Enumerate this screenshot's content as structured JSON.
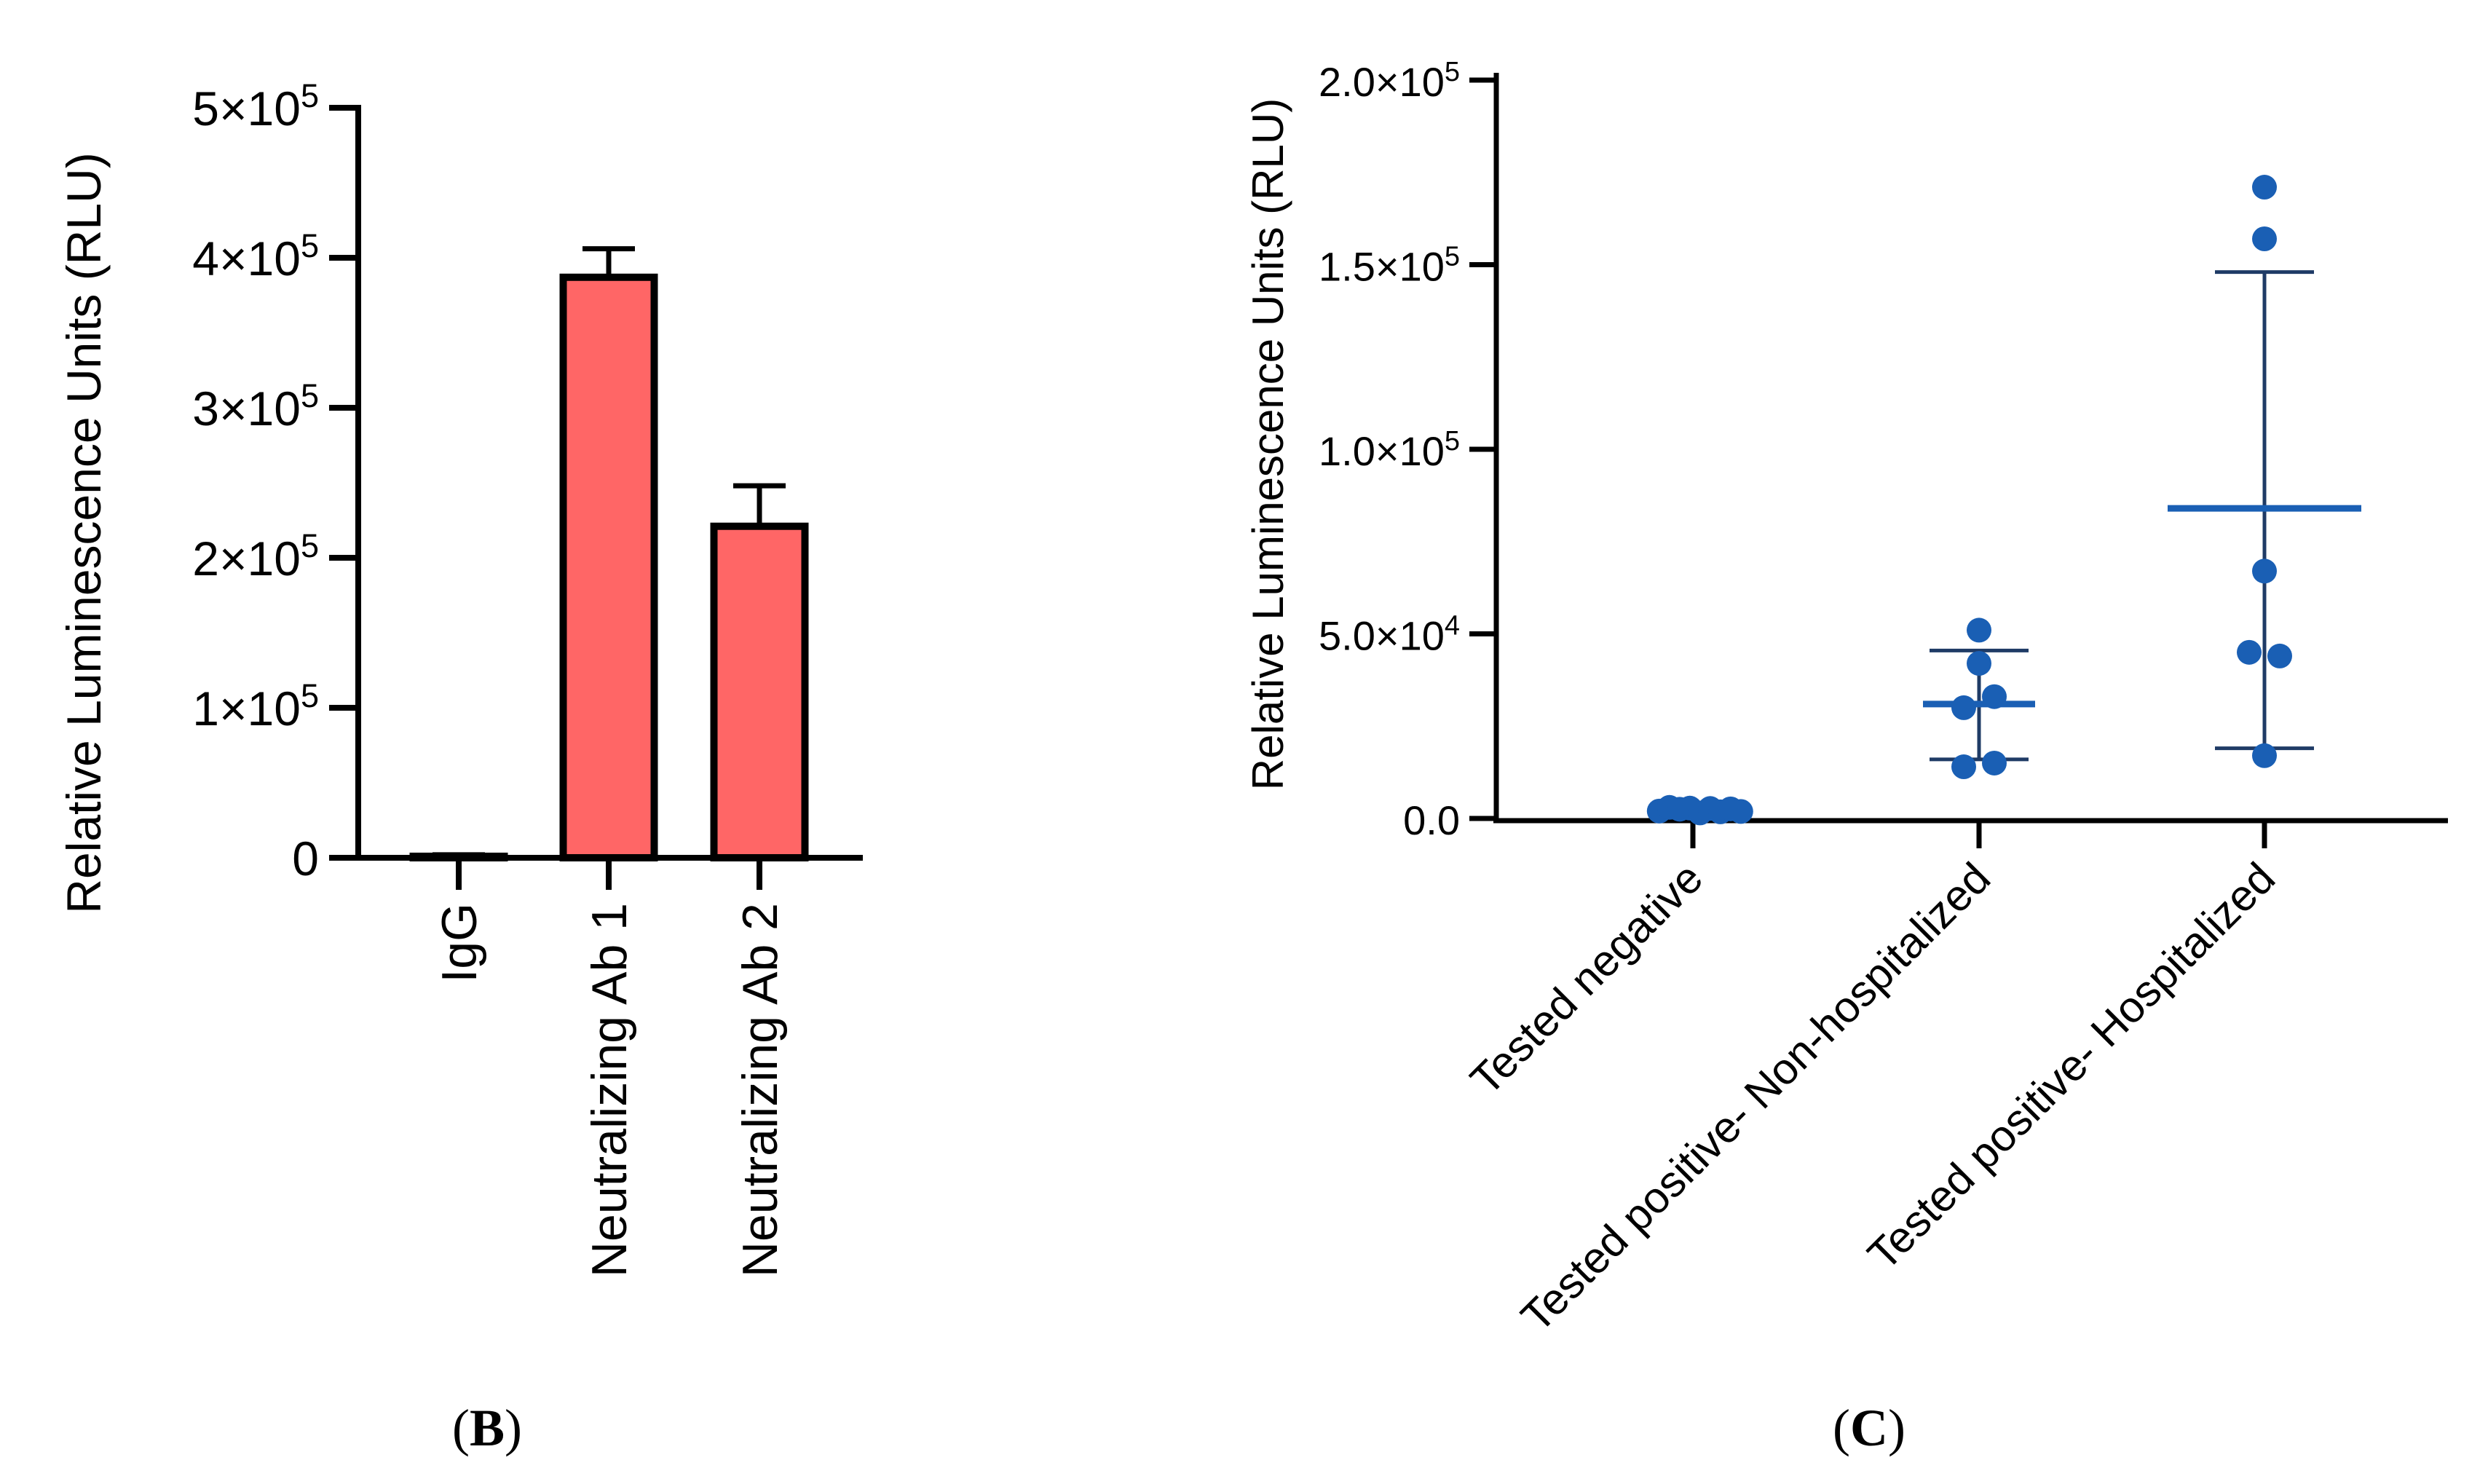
{
  "panels": {
    "B": {
      "label_prefix": "(",
      "label_letter": "B",
      "label_suffix": ")"
    },
    "C": {
      "label_prefix": "(",
      "label_letter": "C",
      "label_suffix": ")"
    }
  },
  "chart_data": [
    {
      "id": "B",
      "type": "bar",
      "ylabel": "Relative Luminescence Units (RLU)",
      "xlabel": "",
      "categories": [
        "IgG",
        "Neutralizing Ab 1",
        "Neutralizing Ab 2"
      ],
      "values": [
        1000,
        387000,
        221000
      ],
      "error": [
        1000,
        19000,
        27000
      ],
      "ylim": [
        0,
        500000
      ],
      "yticks": [
        {
          "value": 0,
          "mant": "0",
          "exp": ""
        },
        {
          "value": 100000,
          "mant": "1×10",
          "exp": "5"
        },
        {
          "value": 200000,
          "mant": "2×10",
          "exp": "5"
        },
        {
          "value": 300000,
          "mant": "3×10",
          "exp": "5"
        },
        {
          "value": 400000,
          "mant": "4×10",
          "exp": "5"
        },
        {
          "value": 500000,
          "mant": "5×10",
          "exp": "5"
        }
      ],
      "bar_color": "#ff6666",
      "grid": false
    },
    {
      "id": "C",
      "type": "scatter",
      "ylabel": "Relative Luminescence Units (RLU)",
      "xlabel": "",
      "categories": [
        "Tested negative",
        "Tested positive- Non-hospitalized",
        "Tested positive- Hospitalized"
      ],
      "ylim": [
        0,
        200000
      ],
      "yticks": [
        {
          "value": 0,
          "mant": "0.0",
          "exp": ""
        },
        {
          "value": 50000,
          "mant": "5.0×10",
          "exp": "4"
        },
        {
          "value": 100000,
          "mant": "1.0×10",
          "exp": "5"
        },
        {
          "value": 150000,
          "mant": "1.5×10",
          "exp": "5"
        },
        {
          "value": 200000,
          "mant": "2.0×10",
          "exp": "5"
        }
      ],
      "series": [
        {
          "name": "Tested negative",
          "mean": 2200,
          "sd_low": 1500,
          "sd_high": 3000,
          "points": [
            {
              "dx": -0.33,
              "y": 2000
            },
            {
              "dx": -0.23,
              "y": 3000
            },
            {
              "dx": -0.13,
              "y": 2500
            },
            {
              "dx": -0.03,
              "y": 2800
            },
            {
              "dx": 0.07,
              "y": 1500
            },
            {
              "dx": 0.17,
              "y": 2700
            },
            {
              "dx": 0.27,
              "y": 1800
            },
            {
              "dx": 0.37,
              "y": 2600
            },
            {
              "dx": 0.47,
              "y": 1900
            }
          ]
        },
        {
          "name": "Tested positive- Non-hospitalized",
          "mean": 31000,
          "sd_low": 16000,
          "sd_high": 45500,
          "points": [
            {
              "dx": 0.0,
              "y": 51000
            },
            {
              "dx": 0.0,
              "y": 42000
            },
            {
              "dx": -0.15,
              "y": 30000
            },
            {
              "dx": 0.15,
              "y": 33000
            },
            {
              "dx": -0.15,
              "y": 14000
            },
            {
              "dx": 0.15,
              "y": 15000
            }
          ]
        },
        {
          "name": "Tested positive- Hospitalized",
          "mean": 84000,
          "sd_low": 19000,
          "sd_high": 148000,
          "points": [
            {
              "dx": 0.0,
              "y": 171000
            },
            {
              "dx": 0.0,
              "y": 157000
            },
            {
              "dx": 0.0,
              "y": 67000
            },
            {
              "dx": -0.15,
              "y": 45000
            },
            {
              "dx": 0.15,
              "y": 44000
            },
            {
              "dx": 0.0,
              "y": 17000
            }
          ]
        }
      ],
      "marker_color": "#1a5fb4",
      "line_color": "#1a5fb4",
      "grid": false
    }
  ]
}
